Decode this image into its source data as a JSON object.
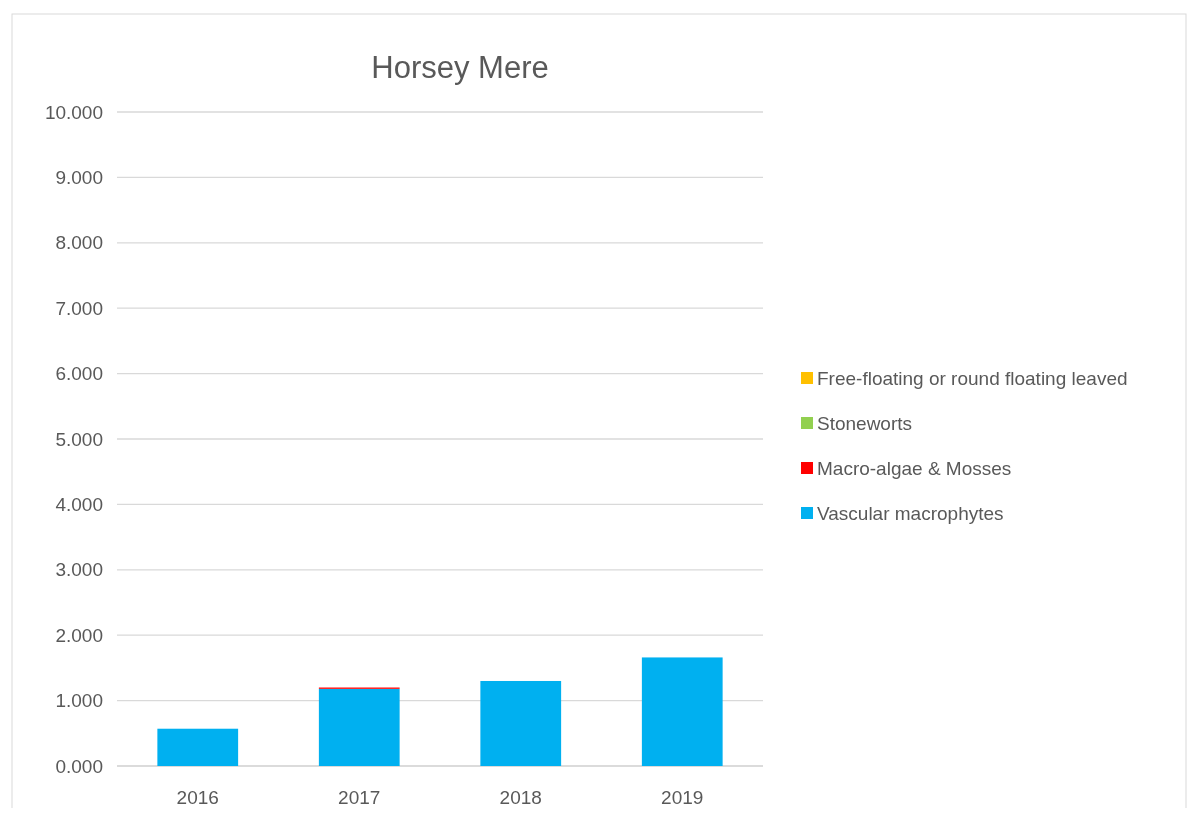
{
  "chart_data": {
    "type": "bar",
    "title": "Horsey Mere",
    "stacked": true,
    "categories": [
      "2016",
      "2017",
      "2018",
      "2019"
    ],
    "series": [
      {
        "name": "Vascular macrophytes",
        "color": "#00b0f0",
        "values": [
          0.57,
          1.18,
          1.3,
          1.66
        ]
      },
      {
        "name": "Macro-algae & Mosses",
        "color": "#ff0000",
        "values": [
          0,
          0.02,
          0,
          0
        ]
      },
      {
        "name": "Stoneworts",
        "color": "#92d050",
        "values": [
          0,
          0,
          0,
          0
        ]
      },
      {
        "name": "Free-floating or round floating leaved",
        "color": "#ffc000",
        "values": [
          0,
          0,
          0,
          0
        ]
      }
    ],
    "ylim": [
      0,
      10
    ],
    "yticks": [
      {
        "value": 0,
        "label": "0.000"
      },
      {
        "value": 1,
        "label": "1.000"
      },
      {
        "value": 2,
        "label": "2.000"
      },
      {
        "value": 3,
        "label": "3.000"
      },
      {
        "value": 4,
        "label": "4.000"
      },
      {
        "value": 5,
        "label": "5.000"
      },
      {
        "value": 6,
        "label": "6.000"
      },
      {
        "value": 7,
        "label": "7.000"
      },
      {
        "value": 8,
        "label": "8.000"
      },
      {
        "value": 9,
        "label": "9.000"
      },
      {
        "value": 10,
        "label": "10.000"
      }
    ],
    "grid": "y",
    "legend": "right"
  }
}
